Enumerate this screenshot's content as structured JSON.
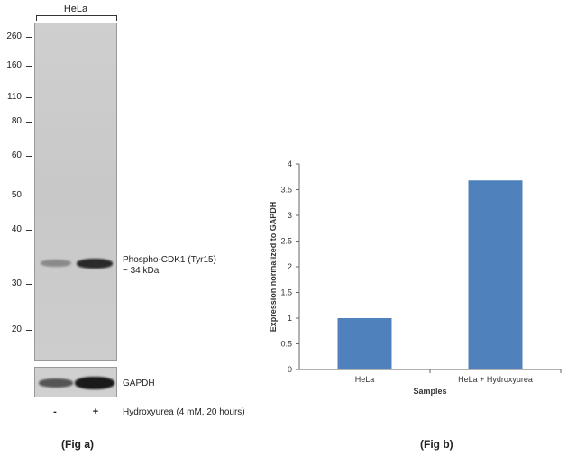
{
  "blot": {
    "sample_label": "HeLa",
    "mw_markers": [
      "260",
      "160",
      "110",
      "80",
      "60",
      "50",
      "40",
      "30",
      "20"
    ],
    "band_label_line1": "Phospho-CDK1 (Tyr15)",
    "band_label_line2": "~ 34 kDa",
    "loading_control_label": "GAPDH",
    "treatment_minus": "-",
    "treatment_plus": "+",
    "treatment_label": "Hydroxyurea (4 mM, 20 hours)",
    "caption": "(Fig a)"
  },
  "figure_b": {
    "caption": "(Fig b)"
  },
  "chart_data": {
    "type": "bar",
    "categories": [
      "HeLa",
      "HeLa + Hydroxyurea"
    ],
    "values": [
      1.0,
      3.68
    ],
    "xlabel": "Samples",
    "ylabel": "Expression  normalized to GAPDH",
    "ylim": [
      0,
      4
    ],
    "yticks": [
      "0",
      "0.5",
      "1",
      "1.5",
      "2",
      "2.5",
      "3",
      "3.5",
      "4"
    ],
    "bar_color": "#4F81BD",
    "grid": false
  }
}
